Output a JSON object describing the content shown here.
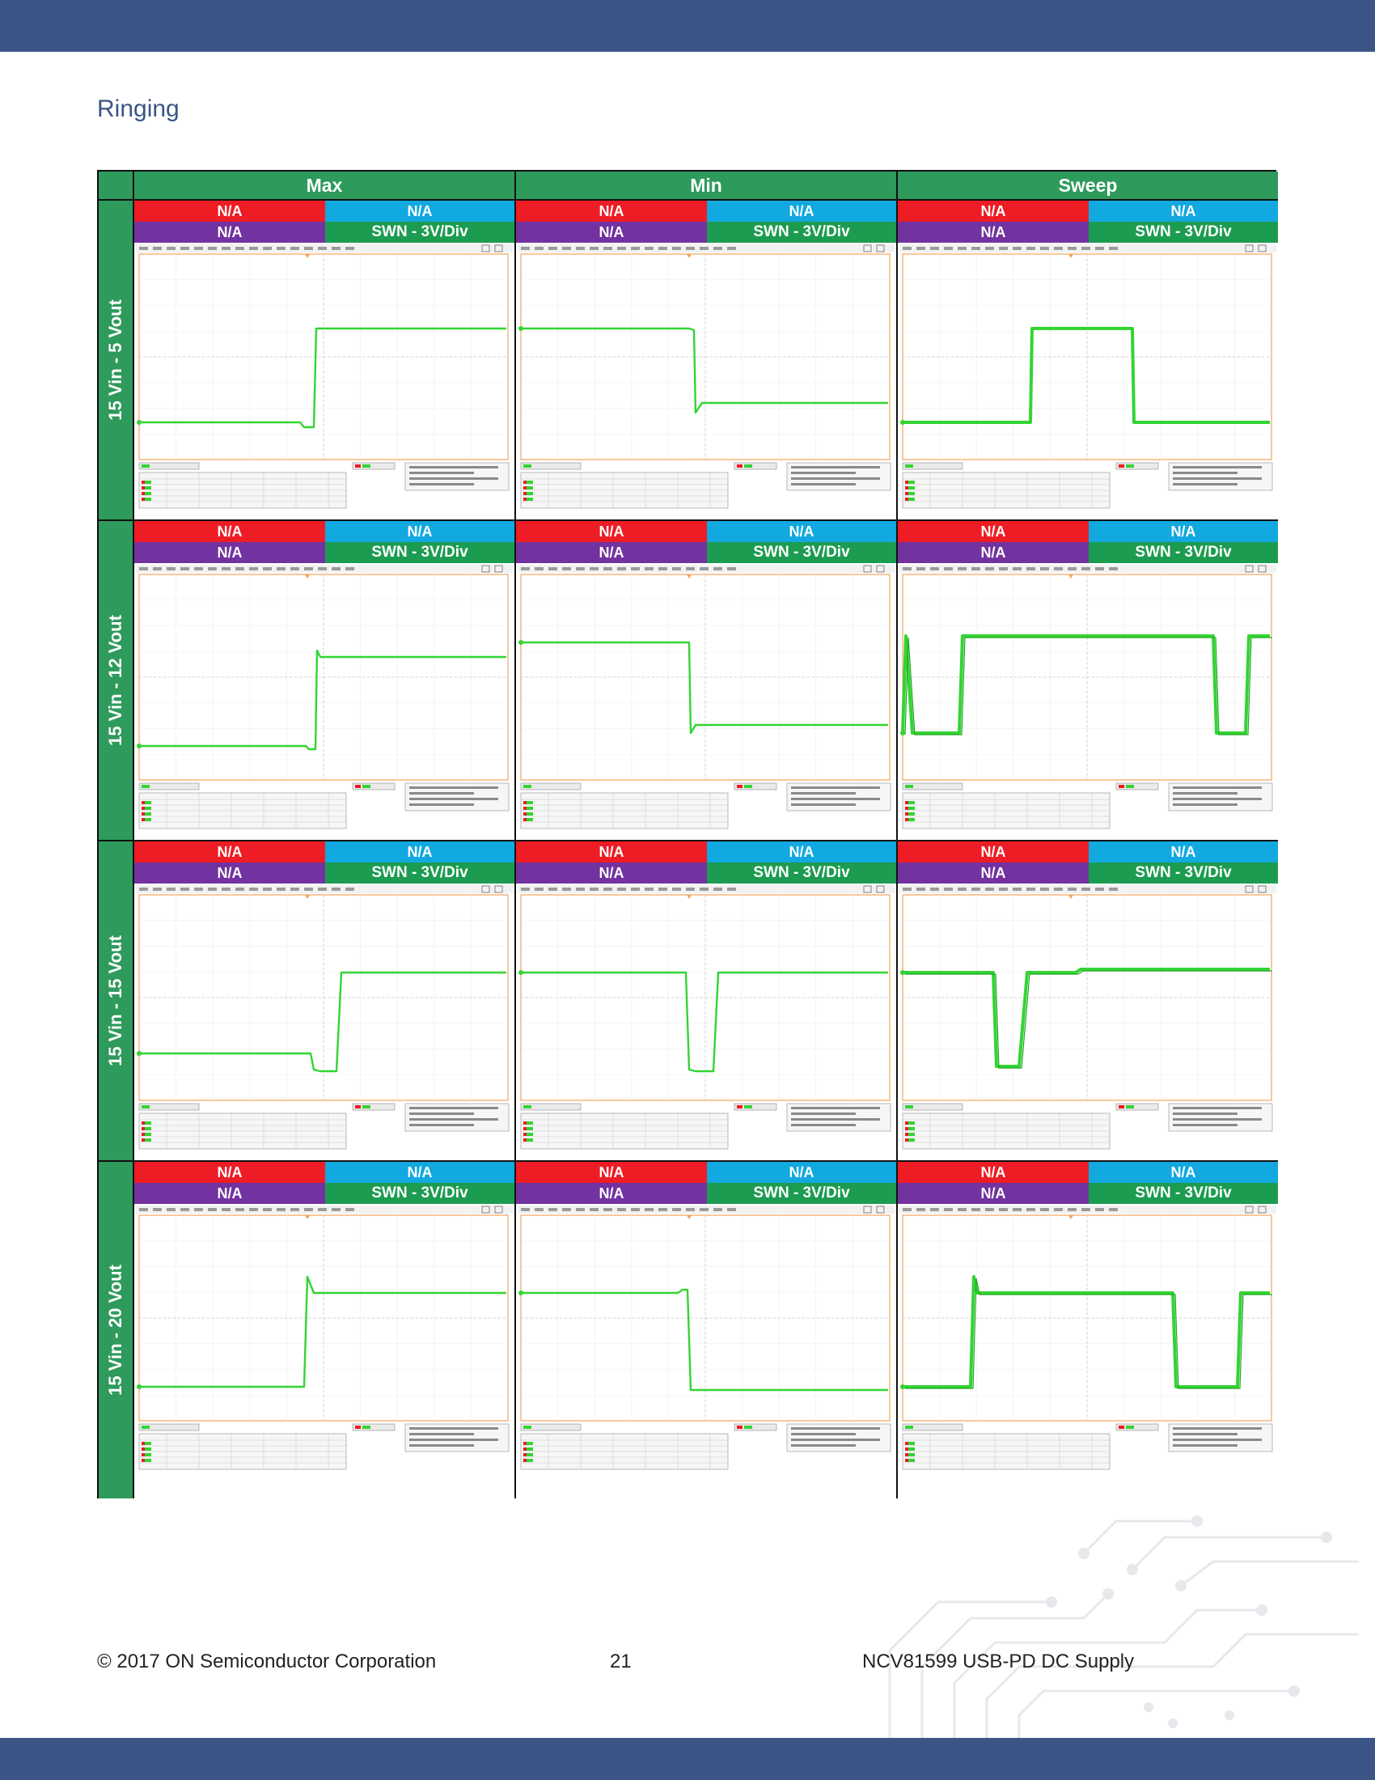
{
  "section_title": "Ringing",
  "columns": [
    "Max",
    "Min",
    "Sweep"
  ],
  "rows": [
    "15 Vin - 5 Vout",
    "15 Vin - 12 Vout",
    "15 Vin - 15 Vout",
    "15 Vin - 20 Vout"
  ],
  "channel_labels": {
    "ch1": "N/A",
    "ch2": "N/A",
    "ch3": "N/A",
    "ch4": "SWN - 3V/Div"
  },
  "colors": {
    "header_green": "#2e9a5c",
    "ch1": "#ee1c24",
    "ch2": "#12a8e0",
    "ch3": "#7232a0",
    "ch4": "#1c9c50",
    "trace": "#33d433",
    "brand_bar": "#3b5586"
  },
  "footer": {
    "copyright": "© 2017 ON Semiconductor Corporation",
    "page_number": "21",
    "doc_title": "NCV81599 USB-PD DC Supply"
  }
}
